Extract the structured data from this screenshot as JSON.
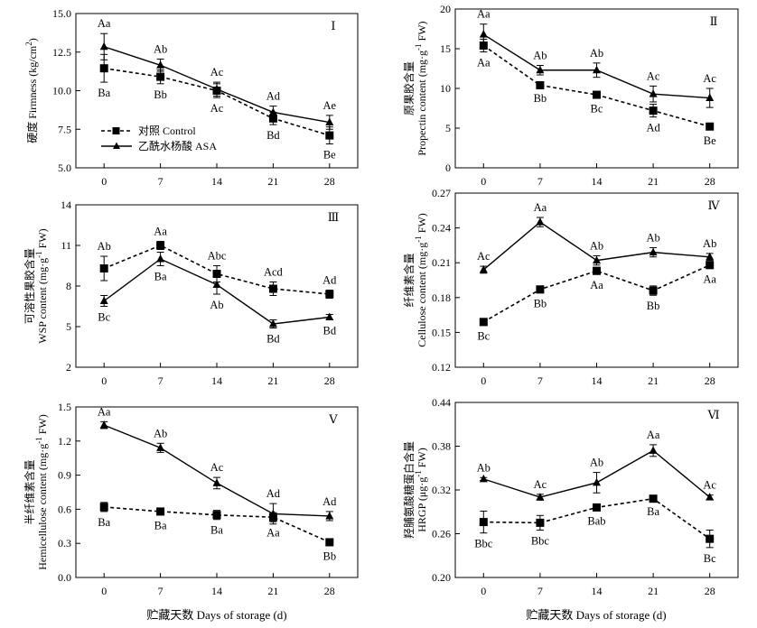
{
  "chart_data": [
    {
      "type": "line",
      "panel": "Ⅰ",
      "ylabel": "硬度 Firmness (kg/cm²)",
      "ylabel_main": "硬度 Firmness (kg/cm",
      "ylabel_sup": "2",
      "ylabel_tail": ")",
      "ylim": [
        5.0,
        15.0
      ],
      "yticks": [
        "5.0",
        "7.5",
        "10.0",
        "12.5",
        "15.0"
      ],
      "ytick_values": [
        5.0,
        7.5,
        10.0,
        12.5,
        15.0
      ],
      "x": [
        0,
        7,
        14,
        21,
        28
      ],
      "xticks": [
        "0",
        "7",
        "14",
        "21",
        "28"
      ],
      "legend": "inside",
      "series": [
        {
          "name": "对照 Control",
          "marker": "square",
          "style": "dashed",
          "values": [
            11.45,
            10.9,
            10.0,
            8.2,
            7.1
          ],
          "errors": [
            0.9,
            0.45,
            0.45,
            0.4,
            0.55
          ],
          "labels": [
            "Ba",
            "Bb",
            "Ac",
            "Bd",
            "Be"
          ],
          "label_side": [
            "below",
            "below",
            "below",
            "below",
            "below"
          ]
        },
        {
          "name": "乙酰水杨酸 ASA",
          "marker": "triangle",
          "style": "solid",
          "values": [
            12.85,
            11.65,
            10.1,
            8.6,
            7.95
          ],
          "errors": [
            0.85,
            0.4,
            0.45,
            0.4,
            0.45
          ],
          "labels": [
            "Aa",
            "Ab",
            "Ac",
            "Ad",
            "Ae"
          ],
          "label_side": [
            "above",
            "above",
            "above",
            "above",
            "above"
          ]
        }
      ]
    },
    {
      "type": "line",
      "panel": "Ⅱ",
      "ylabel": "原果胶含量 Propectin content (mg·g⁻¹ FW)",
      "ylabel_cn": "原果胶含量",
      "ylabel_main": "Propectin content (mg·g",
      "ylabel_sup": "-1",
      "ylabel_tail": " FW)",
      "ylim": [
        0,
        20
      ],
      "yticks": [
        "0",
        "5",
        "10",
        "15",
        "20"
      ],
      "ytick_values": [
        0,
        5,
        10,
        15,
        20
      ],
      "x": [
        0,
        7,
        14,
        21,
        28
      ],
      "xticks": [
        "0",
        "7",
        "14",
        "21",
        "28"
      ],
      "series": [
        {
          "name": "对照 Control",
          "marker": "square",
          "style": "dashed",
          "values": [
            15.4,
            10.4,
            9.2,
            7.2,
            5.2
          ],
          "errors": [
            0.8,
            0.3,
            0.4,
            0.8,
            0.4
          ],
          "labels": [
            "Aa",
            "Bb",
            "Bc",
            "Ad",
            "Be"
          ],
          "label_side": [
            "below",
            "below",
            "below",
            "below",
            "below"
          ]
        },
        {
          "name": "乙酰水杨酸 ASA",
          "marker": "triangle",
          "style": "solid",
          "values": [
            16.8,
            12.3,
            12.3,
            9.3,
            8.8
          ],
          "errors": [
            1.3,
            0.6,
            0.9,
            1.0,
            1.2
          ],
          "labels": [
            "Aa",
            "Ab",
            "Ab",
            "Ac",
            "Ac"
          ],
          "label_side": [
            "above",
            "above",
            "above",
            "above",
            "above"
          ]
        }
      ]
    },
    {
      "type": "line",
      "panel": "Ⅲ",
      "ylabel": "可溶性果胶含量 WSP content (mg·g⁻¹ FW)",
      "ylabel_cn": "可溶性果胶含量",
      "ylabel_main": "WSP content (mg·g",
      "ylabel_sup": "-1",
      "ylabel_tail": " FW)",
      "ylim": [
        2,
        14
      ],
      "yticks": [
        "2",
        "5",
        "8",
        "11",
        "14"
      ],
      "ytick_values": [
        2,
        5,
        8,
        11,
        14
      ],
      "x": [
        0,
        7,
        14,
        21,
        28
      ],
      "xticks": [
        "0",
        "7",
        "14",
        "21",
        "28"
      ],
      "series": [
        {
          "name": "对照 Control",
          "marker": "square",
          "style": "dashed",
          "values": [
            9.3,
            11.0,
            8.9,
            7.8,
            7.4
          ],
          "errors": [
            0.9,
            0.3,
            0.6,
            0.5,
            0.3
          ],
          "labels": [
            "Ab",
            "Aa",
            "Abc",
            "Acd",
            "Ad"
          ],
          "label_side": [
            "above",
            "above",
            "above",
            "above",
            "above"
          ]
        },
        {
          "name": "乙酰水杨酸 ASA",
          "marker": "triangle",
          "style": "solid",
          "values": [
            6.9,
            10.0,
            8.1,
            5.2,
            5.7
          ],
          "errors": [
            0.4,
            0.5,
            0.7,
            0.3,
            0.2
          ],
          "labels": [
            "Bc",
            "Ba",
            "Ab",
            "Bd",
            "Bd"
          ],
          "label_side": [
            "below",
            "below",
            "below",
            "below",
            "below"
          ]
        }
      ]
    },
    {
      "type": "line",
      "panel": "Ⅳ",
      "ylabel": "纤维素含量 Cellulose content (mg·g⁻¹ FW)",
      "ylabel_cn": "纤维素含量",
      "ylabel_main": "Cellulose content (mg·g",
      "ylabel_sup": "-1",
      "ylabel_tail": " FW)",
      "ylim": [
        0.12,
        0.27
      ],
      "yticks": [
        "0.12",
        "0.15",
        "0.18",
        "0.21",
        "0.24",
        "0.27"
      ],
      "ytick_values": [
        0.12,
        0.15,
        0.18,
        0.21,
        0.24,
        0.27
      ],
      "x": [
        0,
        7,
        14,
        21,
        28
      ],
      "xticks": [
        "0",
        "7",
        "14",
        "21",
        "28"
      ],
      "series": [
        {
          "name": "对照 Control",
          "marker": "square",
          "style": "dashed",
          "values": [
            0.159,
            0.187,
            0.203,
            0.186,
            0.208
          ],
          "errors": [
            0.003,
            0.003,
            0.003,
            0.004,
            0.003
          ],
          "labels": [
            "Bc",
            "Bb",
            "Aa",
            "Bb",
            "Aa"
          ],
          "label_side": [
            "below",
            "below",
            "below",
            "below",
            "below"
          ]
        },
        {
          "name": "乙酰水杨酸 ASA",
          "marker": "triangle",
          "style": "solid",
          "values": [
            0.204,
            0.245,
            0.212,
            0.219,
            0.215
          ],
          "errors": [
            0.003,
            0.004,
            0.004,
            0.004,
            0.003
          ],
          "labels": [
            "Ac",
            "Aa",
            "Ab",
            "Ab",
            "Ab"
          ],
          "label_side": [
            "above",
            "above",
            "above",
            "above",
            "above"
          ]
        }
      ]
    },
    {
      "type": "line",
      "panel": "Ⅴ",
      "ylabel": "半纤维素含量 Hemicellulose content (mg·g⁻¹ FW)",
      "ylabel_cn": "半纤维素含量",
      "ylabel_main": "Hemicellulose content (mg·g",
      "ylabel_sup": "-1",
      "ylabel_tail": " FW)",
      "ylim": [
        0.0,
        1.5
      ],
      "yticks": [
        "0.0",
        "0.3",
        "0.6",
        "0.9",
        "1.2",
        "1.5"
      ],
      "ytick_values": [
        0.0,
        0.3,
        0.6,
        0.9,
        1.2,
        1.5
      ],
      "x": [
        0,
        7,
        14,
        21,
        28
      ],
      "xticks": [
        "0",
        "7",
        "14",
        "21",
        "28"
      ],
      "series": [
        {
          "name": "对照 Control",
          "marker": "square",
          "style": "dashed",
          "values": [
            0.62,
            0.58,
            0.55,
            0.53,
            0.31
          ],
          "errors": [
            0.04,
            0.03,
            0.04,
            0.04,
            0.03
          ],
          "labels": [
            "Ba",
            "Ba",
            "Ba",
            "Aa",
            "Bb"
          ],
          "label_side": [
            "below",
            "below",
            "below",
            "below",
            "below"
          ]
        },
        {
          "name": "乙酰水杨酸 ASA",
          "marker": "triangle",
          "style": "solid",
          "values": [
            1.34,
            1.14,
            0.83,
            0.56,
            0.54
          ],
          "errors": [
            0.03,
            0.04,
            0.05,
            0.09,
            0.04
          ],
          "labels": [
            "Aa",
            "Ab",
            "Ac",
            "Ad",
            "Ad"
          ],
          "label_side": [
            "above",
            "above",
            "above",
            "above",
            "above"
          ]
        }
      ]
    },
    {
      "type": "line",
      "panel": "Ⅵ",
      "ylabel": "羟脯氨酸糖蛋白含量 HRGP (μg·g⁻¹ FW)",
      "ylabel_cn": "羟脯氨酸糖蛋白含量",
      "ylabel_main": "HRGP (μg·g",
      "ylabel_sup": "-1",
      "ylabel_tail": " FW)",
      "ylim": [
        0.2,
        0.44
      ],
      "yticks": [
        "0.20",
        "0.26",
        "0.32",
        "0.38",
        "0.44"
      ],
      "ytick_values": [
        0.2,
        0.26,
        0.32,
        0.38,
        0.44
      ],
      "x": [
        0,
        7,
        14,
        21,
        28
      ],
      "xticks": [
        "0",
        "7",
        "14",
        "21",
        "28"
      ],
      "series": [
        {
          "name": "对照 Control",
          "marker": "square",
          "style": "dashed",
          "values": [
            0.276,
            0.275,
            0.296,
            0.308,
            0.253
          ],
          "errors": [
            0.015,
            0.01,
            0.004,
            0.003,
            0.012
          ],
          "labels": [
            "Bbc",
            "Bbc",
            "Bab",
            "Ba",
            "Bc"
          ],
          "label_side": [
            "below",
            "below",
            "below",
            "below",
            "below"
          ]
        },
        {
          "name": "乙酰水杨酸 ASA",
          "marker": "triangle",
          "style": "solid",
          "values": [
            0.335,
            0.31,
            0.33,
            0.374,
            0.31
          ],
          "errors": [
            0.002,
            0.004,
            0.014,
            0.008,
            0.003
          ],
          "labels": [
            "Ab",
            "Ac",
            "Ab",
            "Aa",
            "Ac"
          ],
          "label_side": [
            "above",
            "above",
            "above",
            "above",
            "above"
          ]
        }
      ]
    }
  ],
  "xaxis_label": "贮藏天数 Days of storage (d)",
  "legend": {
    "control": "对照 Control",
    "asa": "乙酰水杨酸 ASA"
  }
}
